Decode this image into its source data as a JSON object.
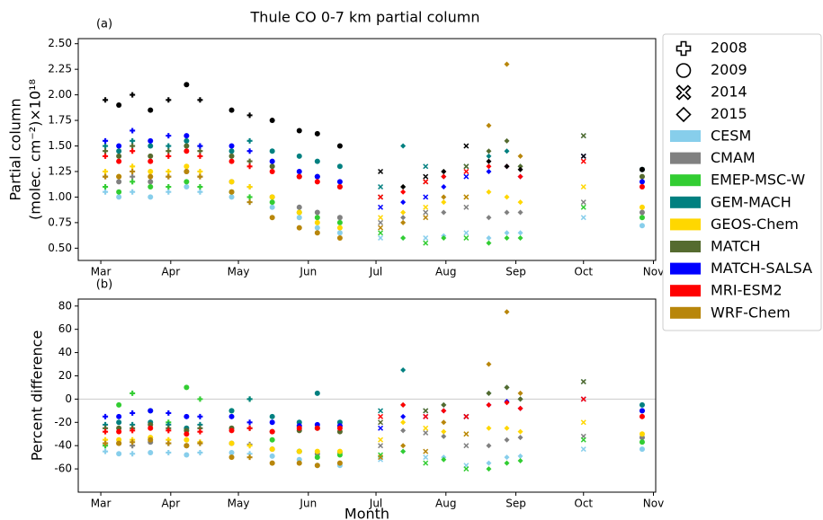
{
  "chart_data": [
    {
      "type": "scatter",
      "title": "Thule CO 0-7 km partial column",
      "panel_label": "(a)",
      "ylabel": [
        "Partial column",
        "(molec. cm⁻²)×10¹⁸"
      ],
      "years": [
        {
          "name": "2008",
          "marker": "plus"
        },
        {
          "name": "2009",
          "marker": "circle"
        },
        {
          "name": "2014",
          "marker": "x"
        },
        {
          "name": "2015",
          "marker": "diamond"
        }
      ],
      "x": [
        2,
        8,
        14,
        22,
        30,
        38,
        44,
        58,
        66,
        76,
        88,
        96,
        106,
        124,
        134,
        144,
        152,
        162,
        172,
        180,
        186,
        214,
        240
      ],
      "year_index": [
        0,
        1,
        0,
        1,
        0,
        1,
        0,
        1,
        0,
        1,
        1,
        1,
        1,
        2,
        3,
        2,
        3,
        2,
        3,
        3,
        3,
        2,
        1
      ],
      "xlim": [
        -10,
        246
      ],
      "xticks": [
        {
          "value": 0,
          "label": "Mar"
        },
        {
          "value": 31,
          "label": "Apr"
        },
        {
          "value": 61,
          "label": "May"
        },
        {
          "value": 92,
          "label": "Jun"
        },
        {
          "value": 122,
          "label": "Jul"
        },
        {
          "value": 153,
          "label": "Aug"
        },
        {
          "value": 184,
          "label": "Sep"
        },
        {
          "value": 214,
          "label": "Oct"
        },
        {
          "value": 245,
          "label": "Nov"
        }
      ],
      "ylim": [
        0.38,
        2.55
      ],
      "yticks": [
        {
          "value": 0.5,
          "label": "0.50"
        },
        0.75,
        {
          "value": 1,
          "label": "1.00"
        },
        1.25,
        {
          "value": 1.5,
          "label": "1.50"
        },
        1.75,
        {
          "value": 2,
          "label": "2.00"
        },
        2.25,
        {
          "value": 2.5,
          "label": "2.50"
        }
      ],
      "series": [
        {
          "name": "CESM",
          "color": "#87ceeb",
          "values": [
            1.05,
            1.0,
            1.05,
            1.0,
            1.05,
            1.1,
            1.05,
            1.0,
            0.95,
            0.9,
            0.8,
            0.7,
            0.65,
            0.6,
            0.6,
            0.6,
            0.62,
            0.65,
            0.6,
            0.65,
            0.65,
            0.8,
            0.72
          ]
        },
        {
          "name": "CMAM",
          "color": "#808080",
          "values": [
            1.2,
            1.15,
            1.2,
            1.15,
            1.2,
            1.25,
            1.2,
            1.15,
            1.1,
            1.0,
            0.9,
            0.85,
            0.8,
            0.75,
            0.8,
            0.85,
            0.85,
            0.9,
            0.8,
            0.85,
            0.85,
            0.95,
            0.85
          ]
        },
        {
          "name": "EMEP-MSC-W",
          "color": "#32cd32",
          "values": [
            1.1,
            1.05,
            1.15,
            1.1,
            1.1,
            1.15,
            1.1,
            1.05,
            1.0,
            0.95,
            0.85,
            0.8,
            0.75,
            0.65,
            0.6,
            0.55,
            0.6,
            0.6,
            0.55,
            0.6,
            0.6,
            0.9,
            0.8
          ]
        },
        {
          "name": "GEM-MACH",
          "color": "#008080",
          "values": [
            1.5,
            1.45,
            1.55,
            1.5,
            1.5,
            1.55,
            1.5,
            1.45,
            1.55,
            1.45,
            1.4,
            1.35,
            1.3,
            1.1,
            1.5,
            1.3,
            1.2,
            1.3,
            1.4,
            1.45,
            1.3,
            1.6,
            1.27
          ]
        },
        {
          "name": "GEOS-Chem",
          "color": "#ffd700",
          "values": [
            1.25,
            1.2,
            1.3,
            1.25,
            1.25,
            1.3,
            1.25,
            1.15,
            1.1,
            1.0,
            0.85,
            0.75,
            0.7,
            0.8,
            0.85,
            0.9,
            0.95,
            1.0,
            1.05,
            1.0,
            0.95,
            1.1,
            0.9
          ]
        },
        {
          "name": "MATCH",
          "color": "#556b2f",
          "values": [
            1.45,
            1.4,
            1.5,
            1.4,
            1.45,
            1.5,
            1.45,
            1.4,
            1.35,
            1.3,
            1.2,
            1.2,
            1.1,
            1.0,
            1.1,
            1.15,
            1.25,
            1.3,
            1.45,
            1.55,
            1.3,
            1.6,
            1.2
          ]
        },
        {
          "name": "MATCH-SALSA",
          "color": "#0000ff",
          "values": [
            1.55,
            1.5,
            1.65,
            1.55,
            1.6,
            1.6,
            1.5,
            1.5,
            1.45,
            1.35,
            1.25,
            1.2,
            1.15,
            0.9,
            0.95,
            1.0,
            1.1,
            1.2,
            1.25,
            1.3,
            1.2,
            1.4,
            1.15
          ]
        },
        {
          "name": "MRI-ESM2",
          "color": "#ff0000",
          "values": [
            1.4,
            1.35,
            1.45,
            1.35,
            1.4,
            1.45,
            1.4,
            1.35,
            1.3,
            1.25,
            1.2,
            1.15,
            1.1,
            1.0,
            1.05,
            1.15,
            1.2,
            1.25,
            1.3,
            1.3,
            1.2,
            1.35,
            1.1
          ]
        },
        {
          "name": "WRF-Chem",
          "color": "#b8860b",
          "values": [
            1.2,
            1.2,
            1.25,
            1.2,
            1.2,
            1.25,
            1.2,
            1.05,
            0.95,
            0.8,
            0.7,
            0.65,
            0.6,
            0.7,
            0.75,
            0.8,
            1.0,
            1.0,
            1.7,
            2.3,
            1.4,
            null,
            null
          ]
        },
        {
          "color": "#000000",
          "values": [
            1.95,
            1.9,
            2.0,
            1.85,
            1.95,
            2.1,
            1.95,
            1.85,
            1.8,
            1.75,
            1.65,
            1.62,
            1.5,
            1.25,
            1.1,
            1.2,
            1.25,
            1.5,
            1.35,
            1.3,
            1.27,
            1.4,
            1.27
          ]
        }
      ]
    },
    {
      "type": "scatter",
      "panel_label": "(b)",
      "ylabel": [
        "Percent difference"
      ],
      "xlabel": "Month",
      "zero_line": true,
      "x": [
        2,
        8,
        14,
        22,
        30,
        38,
        44,
        58,
        66,
        76,
        88,
        96,
        106,
        124,
        134,
        144,
        152,
        162,
        172,
        180,
        186,
        214,
        240
      ],
      "year_index": [
        0,
        1,
        0,
        1,
        0,
        1,
        0,
        1,
        0,
        1,
        1,
        1,
        1,
        2,
        3,
        2,
        3,
        2,
        3,
        3,
        3,
        2,
        1
      ],
      "xlim": [
        -10,
        246
      ],
      "xticks": [
        {
          "value": 0,
          "label": "Mar"
        },
        {
          "value": 31,
          "label": "Apr"
        },
        {
          "value": 61,
          "label": "May"
        },
        {
          "value": 92,
          "label": "Jun"
        },
        {
          "value": 122,
          "label": "Jul"
        },
        {
          "value": 153,
          "label": "Aug"
        },
        {
          "value": 184,
          "label": "Sep"
        },
        {
          "value": 214,
          "label": "Oct"
        },
        {
          "value": 245,
          "label": "Nov"
        }
      ],
      "ylim": [
        -80,
        86
      ],
      "yticks": [
        -60,
        -40,
        -20,
        0,
        20,
        40,
        60,
        80
      ],
      "series": [
        {
          "color": "#87ceeb",
          "values": [
            -45,
            -47,
            -47,
            -46,
            -46,
            -48,
            -46,
            -46,
            -47,
            -49,
            -52,
            -57,
            -57,
            -52,
            -45,
            -50,
            -50,
            -57,
            -55,
            -50,
            -49,
            -43,
            -43
          ]
        },
        {
          "color": "#808080",
          "values": [
            -38,
            -38,
            -40,
            -37,
            -38,
            -40,
            -38,
            -38,
            -39,
            -43,
            -45,
            -47,
            -46,
            -40,
            -27,
            -29,
            -32,
            -40,
            -40,
            -35,
            -33,
            -32,
            -33
          ]
        },
        {
          "color": "#32cd32",
          "values": [
            -40,
            -5,
            5,
            -10,
            -20,
            10,
            0,
            -10,
            0,
            -35,
            -45,
            -50,
            -48,
            -48,
            -45,
            -55,
            -52,
            -60,
            -60,
            -55,
            -53,
            -35,
            -37
          ]
        },
        {
          "color": "#008080",
          "values": [
            -22,
            -20,
            -22,
            -20,
            -22,
            -25,
            -22,
            -10,
            0,
            -15,
            -20,
            5,
            -20,
            -10,
            25,
            -10,
            -5,
            -15,
            5,
            10,
            0,
            15,
            -5
          ]
        },
        {
          "color": "#ffd700",
          "values": [
            -35,
            -35,
            -35,
            -33,
            -35,
            -35,
            -37,
            -38,
            -40,
            -43,
            -45,
            -45,
            -45,
            -35,
            -20,
            -25,
            -28,
            -30,
            -25,
            -25,
            -28,
            -20,
            -30
          ]
        },
        {
          "color": "#556b2f",
          "values": [
            -25,
            -25,
            -25,
            -22,
            -25,
            -27,
            -25,
            -25,
            -25,
            -28,
            -27,
            -25,
            -28,
            -20,
            -5,
            -10,
            -5,
            -15,
            5,
            10,
            0,
            15,
            -10
          ]
        },
        {
          "color": "#0000ff",
          "values": [
            -15,
            -15,
            -12,
            -10,
            -12,
            -15,
            -15,
            -15,
            -20,
            -20,
            -23,
            -22,
            -23,
            -25,
            -15,
            -15,
            -10,
            -15,
            -5,
            -2,
            -8,
            0,
            -10
          ]
        },
        {
          "color": "#ff0000",
          "values": [
            -28,
            -28,
            -27,
            -25,
            -27,
            -30,
            -28,
            -27,
            -25,
            -28,
            -25,
            -25,
            -25,
            -15,
            -5,
            -15,
            -10,
            -15,
            -5,
            -3,
            -8,
            0,
            -15
          ]
        },
        {
          "color": "#b8860b",
          "values": [
            -38,
            -38,
            -37,
            -35,
            -38,
            -40,
            -38,
            -50,
            -50,
            -55,
            -55,
            -57,
            -55,
            -50,
            -40,
            -45,
            -20,
            -30,
            30,
            75,
            5,
            null,
            null
          ]
        }
      ]
    }
  ]
}
